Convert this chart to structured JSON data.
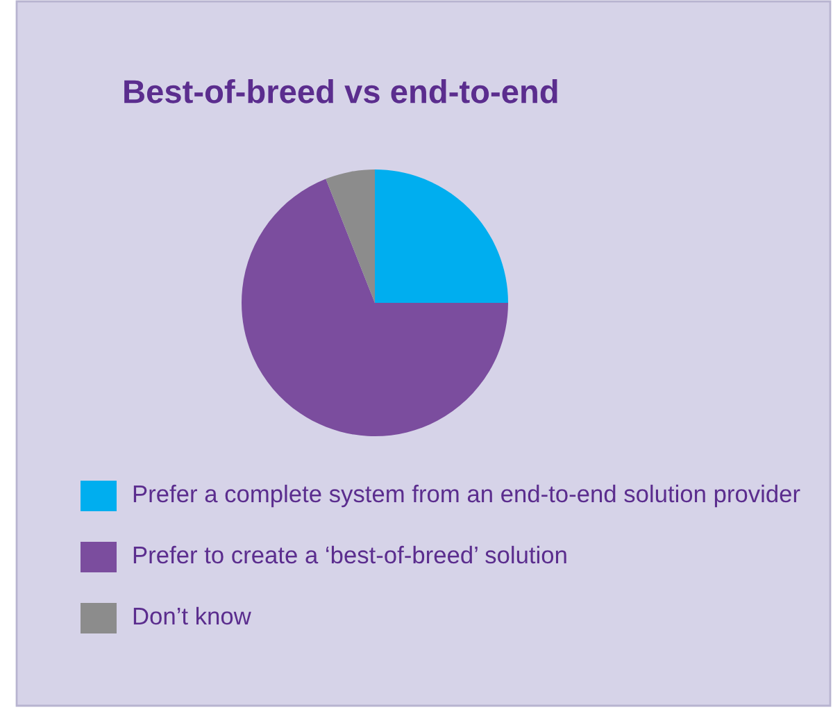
{
  "chart_data": {
    "type": "pie",
    "title": "Best-of-breed vs end-to-end",
    "categories": [
      "Prefer a complete system from an end-to-end solution provider",
      "Prefer to create a ‘best-of-breed’ solution",
      "Don’t know"
    ],
    "values": [
      25,
      69,
      6
    ],
    "colors": [
      "#00aeef",
      "#7b4d9e",
      "#8c8c8c"
    ],
    "legend": "bottom"
  }
}
